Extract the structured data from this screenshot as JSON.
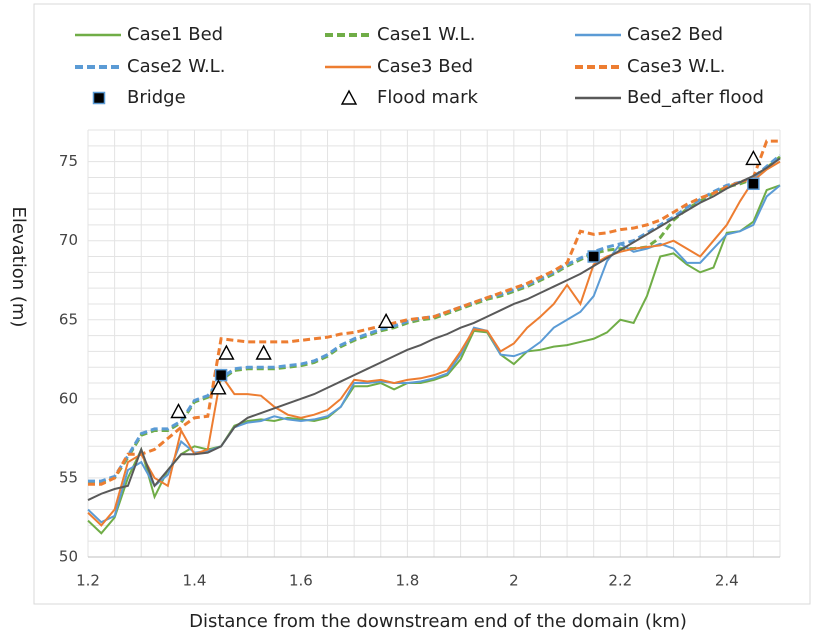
{
  "chart_data": {
    "type": "line",
    "xlabel": "Distance from the downstream end of the domain (km)",
    "ylabel": "Elevation (m)",
    "xlim": [
      1.2,
      2.5
    ],
    "ylim": [
      50,
      77
    ],
    "xticks": [
      1.2,
      1.4,
      1.6,
      1.8,
      2,
      2.2,
      2.4
    ],
    "yticks": [
      50,
      55,
      60,
      65,
      70,
      75
    ],
    "x_gridlines": [
      1.2,
      1.25,
      1.3,
      1.35,
      1.4,
      1.45,
      1.5,
      1.55,
      1.6,
      1.65,
      1.7,
      1.75,
      1.8,
      1.85,
      1.9,
      1.95,
      2,
      2.05,
      2.1,
      2.15,
      2.2,
      2.25,
      2.3,
      2.35,
      2.4,
      2.45,
      2.5
    ],
    "y_gridlines": [
      50,
      51,
      52,
      53,
      54,
      55,
      56,
      57,
      58,
      59,
      60,
      61,
      62,
      63,
      64,
      65,
      66,
      67,
      68,
      69,
      70,
      71,
      72,
      73,
      74,
      75,
      76,
      77
    ],
    "grid": true,
    "x": [
      1.2,
      1.225,
      1.25,
      1.275,
      1.3,
      1.325,
      1.35,
      1.375,
      1.4,
      1.425,
      1.45,
      1.475,
      1.5,
      1.525,
      1.55,
      1.575,
      1.6,
      1.625,
      1.65,
      1.675,
      1.7,
      1.725,
      1.75,
      1.775,
      1.8,
      1.825,
      1.85,
      1.875,
      1.9,
      1.925,
      1.95,
      1.975,
      2,
      2.025,
      2.05,
      2.075,
      2.1,
      2.125,
      2.15,
      2.175,
      2.2,
      2.225,
      2.25,
      2.275,
      2.3,
      2.325,
      2.35,
      2.375,
      2.4,
      2.425,
      2.45,
      2.475,
      2.5
    ],
    "series": [
      {
        "name": "Case1 Bed",
        "color": "#70ad47",
        "dash": false,
        "values": [
          52.3,
          51.5,
          52.5,
          55,
          56.8,
          53.8,
          55.5,
          56.5,
          57,
          56.8,
          57,
          58.3,
          58.6,
          58.7,
          58.6,
          58.8,
          58.7,
          58.6,
          58.8,
          59.5,
          60.8,
          60.8,
          61,
          60.6,
          61,
          61,
          61.2,
          61.5,
          62.5,
          64.3,
          64.2,
          62.8,
          62.2,
          63,
          63.1,
          63.3,
          63.4,
          63.6,
          63.8,
          64.2,
          65,
          64.8,
          66.5,
          69,
          69.2,
          68.5,
          68,
          68.3,
          70.5,
          70.6,
          71.2,
          73.2,
          73.5
        ]
      },
      {
        "name": "Case1 W.L.",
        "color": "#70ad47",
        "dash": true,
        "values": [
          54.7,
          54.7,
          55,
          56.3,
          57.7,
          58,
          58,
          58.5,
          59.8,
          60.1,
          61.2,
          61.8,
          61.9,
          61.9,
          61.9,
          62,
          62.1,
          62.3,
          62.7,
          63.3,
          63.7,
          64,
          64.3,
          64.5,
          64.8,
          65,
          65.1,
          65.4,
          65.7,
          66,
          66.3,
          66.5,
          66.8,
          67.1,
          67.5,
          67.9,
          68.4,
          68.8,
          69.2,
          69.4,
          69.5,
          69.5,
          69.6,
          70.2,
          71.3,
          72,
          72.5,
          73,
          73.4,
          73.6,
          73.9,
          74.6,
          75.3
        ]
      },
      {
        "name": "Case2 Bed",
        "color": "#5b9bd5",
        "dash": false,
        "values": [
          53,
          52.2,
          52.6,
          55.5,
          56,
          54.5,
          55.2,
          57.3,
          56.6,
          56.7,
          57,
          58.2,
          58.5,
          58.6,
          58.9,
          58.7,
          58.6,
          58.7,
          58.9,
          59.5,
          61,
          61,
          61.1,
          61,
          61,
          61.1,
          61.3,
          61.6,
          62.8,
          64.5,
          64.3,
          62.8,
          62.7,
          63,
          63.6,
          64.5,
          65,
          65.5,
          66.5,
          68.7,
          69.8,
          69.3,
          69.5,
          69.8,
          69.5,
          68.6,
          68.6,
          69.5,
          70.4,
          70.6,
          71,
          72.8,
          73.5
        ]
      },
      {
        "name": "Case2 W.L.",
        "color": "#5b9bd5",
        "dash": true,
        "values": [
          54.8,
          54.8,
          55.1,
          56.4,
          57.8,
          58.1,
          58.1,
          58.6,
          59.9,
          60.2,
          61.3,
          61.9,
          62,
          62,
          62,
          62.1,
          62.2,
          62.4,
          62.8,
          63.4,
          63.8,
          64.1,
          64.4,
          64.6,
          64.9,
          65.1,
          65.2,
          65.5,
          65.8,
          66.1,
          66.4,
          66.6,
          66.9,
          67.2,
          67.6,
          68,
          68.5,
          68.9,
          69.3,
          69.6,
          69.8,
          70,
          70.5,
          71,
          71.5,
          72.1,
          72.6,
          73.1,
          73.5,
          73.7,
          74,
          74.7,
          75.4
        ]
      },
      {
        "name": "Case3 Bed",
        "color": "#ed7d31",
        "dash": false,
        "values": [
          52.8,
          52,
          53,
          56,
          56.5,
          55,
          54.5,
          58,
          56.5,
          56.8,
          61.5,
          60.3,
          60.3,
          60.2,
          59.5,
          59,
          58.8,
          59,
          59.3,
          60,
          61.2,
          61.1,
          61.2,
          61,
          61.2,
          61.3,
          61.5,
          61.8,
          63,
          64.4,
          64.3,
          63,
          63.5,
          64.5,
          65.2,
          66,
          67.2,
          66,
          68.5,
          69,
          69.3,
          69.5,
          69.6,
          69.7,
          70,
          69.5,
          69,
          70,
          71,
          72.5,
          73.8,
          74.5,
          75
        ]
      },
      {
        "name": "Case3 W.L.",
        "color": "#ed7d31",
        "dash": true,
        "values": [
          54.6,
          54.6,
          55,
          56.5,
          56.5,
          56.8,
          57.5,
          58.2,
          58.8,
          58.9,
          63.8,
          63.7,
          63.6,
          63.6,
          63.6,
          63.6,
          63.7,
          63.8,
          63.9,
          64.1,
          64.2,
          64.4,
          64.6,
          64.8,
          65,
          65.1,
          65.2,
          65.5,
          65.8,
          66.1,
          66.4,
          66.7,
          67,
          67.3,
          67.7,
          68.1,
          68.6,
          70.6,
          70.4,
          70.5,
          70.7,
          70.8,
          71,
          71.3,
          71.8,
          72.3,
          72.7,
          73,
          73.4,
          73.7,
          74,
          76.3,
          76.3
        ]
      },
      {
        "name": "Bridge",
        "type": "marker",
        "marker": "square",
        "color": "#000000",
        "x": [
          1.45,
          2.15,
          2.45
        ],
        "values": [
          61.5,
          69,
          73.6
        ]
      },
      {
        "name": "Flood mark",
        "type": "marker",
        "marker": "triangle",
        "color": "#000000",
        "x": [
          1.37,
          1.445,
          1.46,
          1.53,
          1.76,
          2.45
        ],
        "values": [
          59.2,
          60.7,
          62.9,
          62.9,
          64.9,
          75.2
        ]
      },
      {
        "name": "Bed_after flood",
        "color": "#595959",
        "dash": false,
        "values": [
          53.6,
          54,
          54.3,
          54.5,
          56.8,
          54.5,
          55.5,
          56.5,
          56.5,
          56.6,
          57,
          58.2,
          58.8,
          59.1,
          59.4,
          59.7,
          60,
          60.3,
          60.7,
          61.1,
          61.5,
          61.9,
          62.3,
          62.7,
          63.1,
          63.4,
          63.8,
          64.1,
          64.5,
          64.8,
          65.2,
          65.6,
          66,
          66.3,
          66.7,
          67.1,
          67.5,
          67.9,
          68.4,
          68.9,
          69.4,
          69.9,
          70.4,
          70.9,
          71.4,
          71.9,
          72.4,
          72.8,
          73.3,
          73.7,
          74.1,
          74.6,
          75.2
        ]
      }
    ]
  }
}
